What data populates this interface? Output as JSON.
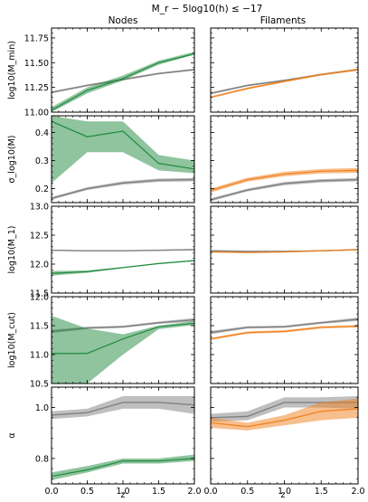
{
  "figure": {
    "title": "M_r − 5log10(h) ≤ −17",
    "col_titles": [
      "Nodes",
      "Filaments"
    ],
    "xlabel": "z"
  },
  "chart_data": [
    {
      "type": "line",
      "panel": "log10(M_min) — Nodes",
      "ylabel": "log10(M_min)",
      "x": [
        0.0,
        0.5,
        1.0,
        1.5,
        2.0
      ],
      "xlim": [
        0,
        2
      ],
      "ylim": [
        11.0,
        11.85
      ],
      "xticks": [
        "0.0",
        "0.5",
        "1.0",
        "1.5",
        "2.0"
      ],
      "yticks": [
        "11.00",
        "11.25",
        "11.50",
        "11.75"
      ],
      "series": [
        {
          "color": "#808080",
          "values": [
            11.2,
            11.27,
            11.33,
            11.39,
            11.43
          ],
          "lower": [
            11.19,
            11.26,
            11.32,
            11.38,
            11.42
          ],
          "upper": [
            11.21,
            11.28,
            11.34,
            11.4,
            11.44
          ]
        },
        {
          "color": "#1f8a3e",
          "values": [
            11.02,
            11.22,
            11.34,
            11.5,
            11.59
          ],
          "lower": [
            11.0,
            11.19,
            11.32,
            11.48,
            11.58
          ],
          "upper": [
            11.05,
            11.25,
            11.37,
            11.52,
            11.61
          ]
        }
      ]
    },
    {
      "type": "line",
      "panel": "log10(M_min) — Filaments",
      "ylabel": "",
      "x": [
        0.0,
        0.5,
        1.0,
        1.5,
        2.0
      ],
      "xlim": [
        0,
        2
      ],
      "ylim": [
        11.0,
        11.85
      ],
      "xticks": [
        "0.0",
        "0.5",
        "1.0",
        "1.5",
        "2.0"
      ],
      "yticks": [
        "11.00",
        "11.25",
        "11.50",
        "11.75"
      ],
      "series": [
        {
          "color": "#808080",
          "values": [
            11.19,
            11.27,
            11.32,
            11.38,
            11.43
          ],
          "lower": [
            11.18,
            11.26,
            11.31,
            11.37,
            11.42
          ],
          "upper": [
            11.2,
            11.28,
            11.33,
            11.39,
            11.44
          ]
        },
        {
          "color": "#f07f1c",
          "values": [
            11.15,
            11.24,
            11.31,
            11.38,
            11.43
          ],
          "lower": [
            11.14,
            11.23,
            11.3,
            11.37,
            11.42
          ],
          "upper": [
            11.16,
            11.25,
            11.32,
            11.39,
            11.44
          ]
        }
      ]
    },
    {
      "type": "line",
      "panel": "sigma_log10(M) — Nodes",
      "ylabel": "σ_log10(M)",
      "x": [
        0.0,
        0.5,
        1.0,
        1.5,
        2.0
      ],
      "xlim": [
        0,
        2
      ],
      "ylim": [
        0.15,
        0.46
      ],
      "xticks": [
        "0.0",
        "0.5",
        "1.0",
        "1.5",
        "2.0"
      ],
      "yticks": [
        "0.2",
        "0.3",
        "0.4"
      ],
      "series": [
        {
          "color": "#808080",
          "values": [
            0.165,
            0.2,
            0.22,
            0.23,
            0.232
          ],
          "lower": [
            0.16,
            0.195,
            0.214,
            0.224,
            0.226
          ],
          "upper": [
            0.17,
            0.205,
            0.226,
            0.236,
            0.238
          ]
        },
        {
          "color": "#1f8a3e",
          "values": [
            0.44,
            0.385,
            0.405,
            0.29,
            0.27
          ],
          "lower": [
            0.22,
            0.33,
            0.33,
            0.265,
            0.255
          ],
          "upper": [
            0.46,
            0.44,
            0.44,
            0.32,
            0.3
          ]
        }
      ]
    },
    {
      "type": "line",
      "panel": "sigma_log10(M) — Filaments",
      "ylabel": "",
      "x": [
        0.0,
        0.5,
        1.0,
        1.5,
        2.0
      ],
      "xlim": [
        0,
        2
      ],
      "ylim": [
        0.15,
        0.46
      ],
      "xticks": [
        "0.0",
        "0.5",
        "1.0",
        "1.5",
        "2.0"
      ],
      "yticks": [
        "0.2",
        "0.3",
        "0.4"
      ],
      "series": [
        {
          "color": "#808080",
          "values": [
            0.16,
            0.195,
            0.218,
            0.228,
            0.232
          ],
          "lower": [
            0.155,
            0.19,
            0.212,
            0.222,
            0.226
          ],
          "upper": [
            0.165,
            0.2,
            0.224,
            0.234,
            0.238
          ]
        },
        {
          "color": "#f07f1c",
          "values": [
            0.193,
            0.232,
            0.252,
            0.262,
            0.265
          ],
          "lower": [
            0.186,
            0.225,
            0.244,
            0.254,
            0.256
          ],
          "upper": [
            0.2,
            0.239,
            0.26,
            0.27,
            0.274
          ]
        }
      ]
    },
    {
      "type": "line",
      "panel": "log10(M_1) — Nodes",
      "ylabel": "log10(M_1)",
      "x": [
        0.0,
        0.5,
        1.0,
        1.5,
        2.0
      ],
      "xlim": [
        0,
        2
      ],
      "ylim": [
        11.5,
        13.0
      ],
      "xticks": [
        "0.0",
        "0.5",
        "1.0",
        "1.5",
        "2.0"
      ],
      "yticks": [
        "11.5",
        "12.0",
        "12.5",
        "13.0"
      ],
      "series": [
        {
          "color": "#808080",
          "values": [
            12.24,
            12.23,
            12.23,
            12.24,
            12.25
          ],
          "lower": [
            12.23,
            12.22,
            12.22,
            12.23,
            12.24
          ],
          "upper": [
            12.25,
            12.24,
            12.24,
            12.25,
            12.26
          ]
        },
        {
          "color": "#1f8a3e",
          "values": [
            11.84,
            11.87,
            11.94,
            12.01,
            12.06
          ],
          "lower": [
            11.8,
            11.85,
            11.93,
            12.0,
            12.05
          ],
          "upper": [
            11.88,
            11.89,
            11.95,
            12.02,
            12.07
          ]
        }
      ]
    },
    {
      "type": "line",
      "panel": "log10(M_1) — Filaments",
      "ylabel": "",
      "x": [
        0.0,
        0.5,
        1.0,
        1.5,
        2.0
      ],
      "xlim": [
        0,
        2
      ],
      "ylim": [
        11.5,
        13.0
      ],
      "xticks": [
        "0.0",
        "0.5",
        "1.0",
        "1.5",
        "2.0"
      ],
      "yticks": [
        "11.5",
        "12.0",
        "12.5",
        "13.0"
      ],
      "series": [
        {
          "color": "#808080",
          "values": [
            12.23,
            12.22,
            12.22,
            12.23,
            12.25
          ],
          "lower": [
            12.22,
            12.21,
            12.21,
            12.22,
            12.24
          ],
          "upper": [
            12.24,
            12.23,
            12.23,
            12.24,
            12.26
          ]
        },
        {
          "color": "#f07f1c",
          "values": [
            12.21,
            12.2,
            12.21,
            12.23,
            12.25
          ],
          "lower": [
            12.2,
            12.19,
            12.2,
            12.22,
            12.24
          ],
          "upper": [
            12.22,
            12.21,
            12.22,
            12.24,
            12.26
          ]
        }
      ]
    },
    {
      "type": "line",
      "panel": "log10(M_cut) — Nodes",
      "ylabel": "log10(M_cut)",
      "x": [
        0.0,
        0.5,
        1.0,
        1.5,
        2.0
      ],
      "xlim": [
        0,
        2
      ],
      "ylim": [
        10.5,
        12.0
      ],
      "xticks": [
        "0.0",
        "0.5",
        "1.0",
        "1.5",
        "2.0"
      ],
      "yticks": [
        "10.5",
        "11.0",
        "11.5",
        "12.0"
      ],
      "series": [
        {
          "color": "#808080",
          "values": [
            11.4,
            11.46,
            11.48,
            11.55,
            11.6
          ],
          "lower": [
            11.37,
            11.44,
            11.46,
            11.53,
            11.57
          ],
          "upper": [
            11.43,
            11.48,
            11.5,
            11.57,
            11.63
          ]
        },
        {
          "color": "#1f8a3e",
          "values": [
            11.02,
            11.02,
            11.27,
            11.48,
            11.54
          ],
          "lower": [
            10.5,
            10.5,
            11.0,
            11.44,
            11.51
          ],
          "upper": [
            11.67,
            11.45,
            11.35,
            11.5,
            11.58
          ]
        }
      ]
    },
    {
      "type": "line",
      "panel": "log10(M_cut) — Filaments",
      "ylabel": "",
      "x": [
        0.0,
        0.5,
        1.0,
        1.5,
        2.0
      ],
      "xlim": [
        0,
        2
      ],
      "ylim": [
        10.5,
        12.0
      ],
      "xticks": [
        "0.0",
        "0.5",
        "1.0",
        "1.5",
        "2.0"
      ],
      "yticks": [
        "10.5",
        "11.0",
        "11.5",
        "12.0"
      ],
      "series": [
        {
          "color": "#808080",
          "values": [
            11.38,
            11.47,
            11.48,
            11.55,
            11.61
          ],
          "lower": [
            11.35,
            11.45,
            11.46,
            11.53,
            11.58
          ],
          "upper": [
            11.41,
            11.49,
            11.5,
            11.57,
            11.64
          ]
        },
        {
          "color": "#f07f1c",
          "values": [
            11.27,
            11.38,
            11.4,
            11.47,
            11.49
          ],
          "lower": [
            11.25,
            11.36,
            11.38,
            11.45,
            11.47
          ],
          "upper": [
            11.29,
            11.4,
            11.42,
            11.49,
            11.51
          ]
        }
      ]
    },
    {
      "type": "line",
      "panel": "alpha — Nodes",
      "ylabel": "α",
      "x": [
        0.0,
        0.5,
        1.0,
        1.5,
        2.0
      ],
      "xlim": [
        0,
        2
      ],
      "ylim": [
        0.7,
        1.08
      ],
      "xticks": [
        "0.0",
        "0.5",
        "1.0",
        "1.5",
        "2.0"
      ],
      "yticks": [
        "0.8",
        "1.0"
      ],
      "series": [
        {
          "color": "#808080",
          "values": [
            0.97,
            0.98,
            1.02,
            1.02,
            1.01
          ],
          "lower": [
            0.955,
            0.965,
            0.995,
            0.995,
            0.975
          ],
          "upper": [
            0.985,
            0.995,
            1.045,
            1.045,
            1.045
          ]
        },
        {
          "color": "#1f8a3e",
          "values": [
            0.73,
            0.755,
            0.79,
            0.79,
            0.8
          ],
          "lower": [
            0.715,
            0.745,
            0.78,
            0.78,
            0.79
          ],
          "upper": [
            0.745,
            0.77,
            0.8,
            0.8,
            0.815
          ]
        }
      ]
    },
    {
      "type": "line",
      "panel": "alpha — Filaments",
      "ylabel": "",
      "x": [
        0.0,
        0.5,
        1.0,
        1.5,
        2.0
      ],
      "xlim": [
        0,
        2
      ],
      "ylim": [
        0.7,
        1.08
      ],
      "xticks": [
        "0.0",
        "0.5",
        "1.0",
        "1.5",
        "2.0"
      ],
      "yticks": [
        "0.8",
        "1.0"
      ],
      "series": [
        {
          "color": "#808080",
          "values": [
            0.96,
            0.965,
            1.02,
            1.02,
            1.02
          ],
          "lower": [
            0.945,
            0.95,
            1.0,
            1.0,
            0.995
          ],
          "upper": [
            0.975,
            0.985,
            1.04,
            1.04,
            1.045
          ]
        },
        {
          "color": "#f07f1c",
          "values": [
            0.94,
            0.925,
            0.95,
            0.985,
            0.995
          ],
          "lower": [
            0.92,
            0.91,
            0.93,
            0.95,
            0.96
          ],
          "upper": [
            0.96,
            0.94,
            0.97,
            1.02,
            1.035
          ]
        }
      ]
    }
  ]
}
